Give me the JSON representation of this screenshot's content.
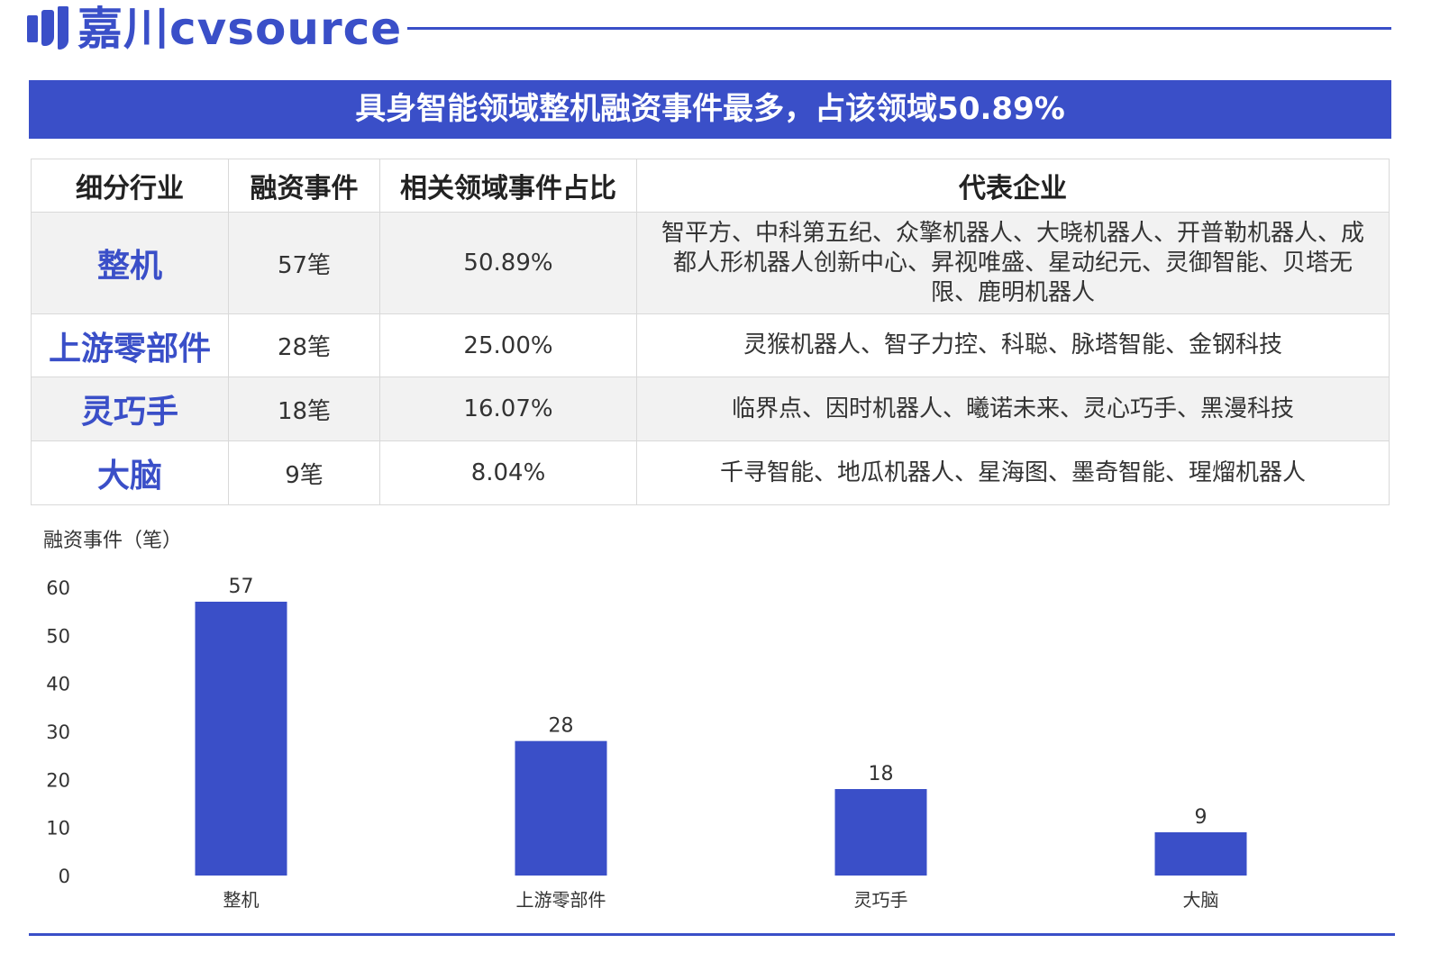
{
  "brand": {
    "name": "嘉川cvsource",
    "accent": "#3a4fc8"
  },
  "banner_title": "具身智能领域整机融资事件最多，占该领域50.89%",
  "table": {
    "headers": [
      "细分行业",
      "融资事件",
      "相关领域事件占比",
      "代表企业"
    ],
    "rows": [
      {
        "segment": "整机",
        "events": "57笔",
        "share": "50.89%",
        "companies": "智平方、中科第五纪、众擎机器人、大晓机器人、开普勒机器人、成都人形机器人创新中心、昇视唯盛、星动纪元、灵御智能、贝塔无限、鹿明机器人"
      },
      {
        "segment": "上游零部件",
        "events": "28笔",
        "share": "25.00%",
        "companies": "灵猴机器人、智子力控、科聪、脉塔智能、金钢科技"
      },
      {
        "segment": "灵巧手",
        "events": "18笔",
        "share": "16.07%",
        "companies": "临界点、因时机器人、曦诺未来、灵心巧手、黑漫科技"
      },
      {
        "segment": "大脑",
        "events": "9笔",
        "share": "8.04%",
        "companies": "千寻智能、地瓜机器人、星海图、墨奇智能、瑆熘机器人"
      }
    ]
  },
  "chart_data": {
    "type": "bar",
    "categories": [
      "整机",
      "上游零部件",
      "灵巧手",
      "大脑"
    ],
    "values": [
      57,
      28,
      18,
      9
    ],
    "title": "",
    "xlabel": "",
    "ylabel": "融资事件（笔）",
    "ylim": [
      0,
      60
    ],
    "yticks": [
      0,
      10,
      20,
      30,
      40,
      50,
      60
    ],
    "grid": false,
    "data_labels": true,
    "bar_color": "#3a4fc8"
  }
}
